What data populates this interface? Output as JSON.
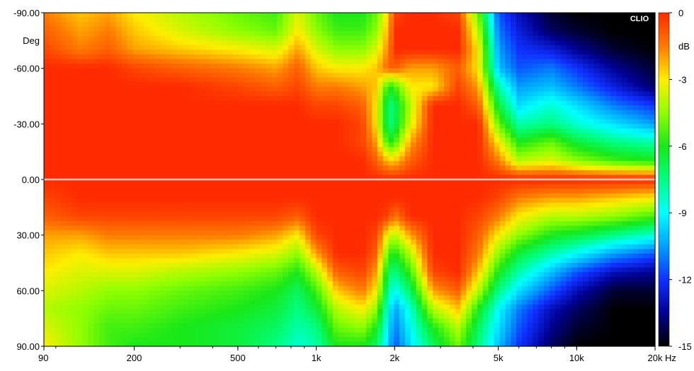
{
  "chart_data": {
    "type": "heatmap",
    "title": "",
    "watermark": "CLIO",
    "xlabel_unit": "Hz",
    "ylabel_unit": "Deg",
    "x_scale": "log",
    "xlim": [
      90,
      20000
    ],
    "ylim": [
      -90,
      90
    ],
    "x_ticks": [
      {
        "value": 90,
        "label": "90"
      },
      {
        "value": 200,
        "label": "200"
      },
      {
        "value": 500,
        "label": "500"
      },
      {
        "value": 1000,
        "label": "1k"
      },
      {
        "value": 2000,
        "label": "2k"
      },
      {
        "value": 5000,
        "label": "5k"
      },
      {
        "value": 10000,
        "label": "10k"
      },
      {
        "value": 20000,
        "label": "20k"
      }
    ],
    "y_ticks": [
      {
        "value": -90,
        "label": "-90.00"
      },
      {
        "value": -60,
        "label": "-60.00"
      },
      {
        "value": -30,
        "label": "-30.00"
      },
      {
        "value": 0,
        "label": "0.00"
      },
      {
        "value": 30,
        "label": "30.00"
      },
      {
        "value": 60,
        "label": "60.00"
      },
      {
        "value": 90,
        "label": "90.00"
      }
    ],
    "colorbar": {
      "unit": "dB",
      "range": [
        -15,
        0
      ],
      "ticks": [
        {
          "value": 0,
          "label": "0"
        },
        {
          "value": -3,
          "label": "-3"
        },
        {
          "value": -6,
          "label": "-6"
        },
        {
          "value": -9,
          "label": "-9"
        },
        {
          "value": -12,
          "label": "-12"
        },
        {
          "value": -15,
          "label": "-15"
        }
      ],
      "stops": [
        {
          "db": 0,
          "color": "#ff2a00"
        },
        {
          "db": -1.5,
          "color": "#ff7a00"
        },
        {
          "db": -3,
          "color": "#ffee00"
        },
        {
          "db": -4.5,
          "color": "#90ff00"
        },
        {
          "db": -6,
          "color": "#18e818"
        },
        {
          "db": -7.5,
          "color": "#00ff80"
        },
        {
          "db": -9,
          "color": "#00ffff"
        },
        {
          "db": -10.5,
          "color": "#00a0ff"
        },
        {
          "db": -12,
          "color": "#1030ff"
        },
        {
          "db": -13.5,
          "color": "#000090"
        },
        {
          "db": -15,
          "color": "#000000"
        }
      ]
    },
    "colors": {
      "reference_line": "#ffc8b4"
    },
    "angles": [
      -90,
      -80,
      -70,
      -60,
      -50,
      -40,
      -30,
      -20,
      -10,
      0,
      10,
      20,
      30,
      40,
      50,
      60,
      70,
      80,
      90
    ],
    "frequencies": [
      90,
      125,
      160,
      200,
      300,
      500,
      700,
      850,
      1000,
      1200,
      1500,
      1700,
      1900,
      2000,
      2300,
      2800,
      3500,
      4200,
      5000,
      6000,
      8000,
      10000,
      14000,
      20000
    ],
    "values_db": [
      [
        -1.5,
        -2.5,
        -2.0,
        -3.0,
        -4.0,
        -5.0,
        -5.5,
        -3.5,
        -5.0,
        -6.0,
        -6.0,
        -5.0,
        -2.5,
        -0.5,
        0.0,
        0.0,
        -0.5,
        -5.0,
        -11.5,
        -13.0,
        -14.5,
        -15.0,
        -15.0,
        -15.0
      ],
      [
        -1.0,
        -2.0,
        -1.5,
        -2.5,
        -3.5,
        -4.5,
        -5.0,
        -3.0,
        -4.5,
        -5.5,
        -5.5,
        -4.5,
        -2.0,
        0.0,
        0.0,
        0.0,
        0.0,
        -4.0,
        -11.0,
        -12.5,
        -14.0,
        -14.5,
        -15.0,
        -15.0
      ],
      [
        -0.5,
        -1.5,
        -1.0,
        -2.0,
        -2.5,
        -3.0,
        -3.5,
        -2.0,
        -3.5,
        -4.5,
        -4.5,
        -3.5,
        -1.5,
        0.0,
        0.0,
        0.0,
        0.0,
        -3.0,
        -10.5,
        -12.0,
        -12.5,
        -13.5,
        -14.5,
        -15.0
      ],
      [
        0.0,
        0.0,
        0.0,
        -0.5,
        -1.0,
        -1.5,
        -2.0,
        -1.0,
        -2.5,
        -3.0,
        -3.0,
        -2.5,
        -1.0,
        -1.0,
        -2.0,
        -2.0,
        -1.0,
        -3.0,
        -10.0,
        -11.5,
        -11.0,
        -12.0,
        -13.5,
        -14.5
      ],
      [
        0.0,
        0.0,
        0.0,
        0.0,
        0.0,
        -0.5,
        -1.0,
        -0.5,
        -1.5,
        -1.5,
        -2.0,
        -2.5,
        -6.0,
        -5.5,
        -3.0,
        -3.0,
        -0.5,
        -2.0,
        -8.0,
        -10.5,
        -10.0,
        -11.0,
        -12.5,
        -14.0
      ],
      [
        0.0,
        0.0,
        0.0,
        0.0,
        0.0,
        0.0,
        0.0,
        0.0,
        -0.5,
        -0.5,
        -1.0,
        -3.0,
        -7.5,
        -7.0,
        -4.0,
        0.0,
        0.0,
        -1.0,
        -6.5,
        -9.5,
        -8.5,
        -9.5,
        -11.0,
        -12.0
      ],
      [
        0.0,
        0.0,
        0.0,
        0.0,
        0.0,
        0.0,
        0.0,
        0.0,
        0.0,
        0.0,
        -0.5,
        -3.0,
        -7.5,
        -7.0,
        -3.5,
        0.0,
        0.0,
        0.0,
        -5.0,
        -8.0,
        -7.5,
        -8.5,
        -9.5,
        -10.5
      ],
      [
        0.0,
        0.0,
        0.0,
        0.0,
        0.0,
        0.0,
        0.0,
        0.0,
        0.0,
        0.0,
        -0.5,
        -2.0,
        -6.0,
        -5.5,
        -2.0,
        0.0,
        0.0,
        0.0,
        -3.0,
        -6.0,
        -5.0,
        -6.5,
        -7.5,
        -8.0
      ],
      [
        0.0,
        0.0,
        0.0,
        0.0,
        0.0,
        0.0,
        0.0,
        0.0,
        0.0,
        0.0,
        0.0,
        -1.0,
        -2.5,
        -2.5,
        -1.0,
        0.0,
        0.0,
        0.0,
        -1.5,
        -4.0,
        -3.5,
        -4.5,
        -5.5,
        -6.0
      ],
      [
        0.0,
        0.0,
        0.0,
        0.0,
        0.0,
        0.0,
        0.0,
        0.0,
        0.0,
        0.0,
        0.0,
        0.0,
        0.0,
        0.0,
        0.0,
        0.0,
        0.0,
        0.0,
        0.0,
        0.0,
        0.0,
        0.0,
        0.0,
        0.0
      ],
      [
        -0.5,
        0.0,
        0.0,
        0.0,
        0.0,
        0.0,
        0.0,
        0.0,
        0.0,
        0.0,
        0.0,
        0.0,
        0.0,
        0.0,
        0.0,
        0.0,
        0.0,
        0.0,
        -0.5,
        -1.5,
        -2.0,
        -2.0,
        -2.5,
        -3.0
      ],
      [
        -1.0,
        -0.5,
        -0.5,
        -0.5,
        -0.5,
        -0.5,
        -0.5,
        -1.0,
        0.0,
        0.0,
        0.0,
        0.0,
        -0.5,
        -1.5,
        0.0,
        0.0,
        0.0,
        -0.5,
        -1.5,
        -3.0,
        -4.0,
        -4.0,
        -4.5,
        -5.5
      ],
      [
        -2.0,
        -2.0,
        -1.5,
        -1.5,
        -1.5,
        -1.5,
        -2.0,
        -3.0,
        -0.5,
        0.0,
        0.0,
        -0.5,
        -3.5,
        -4.0,
        -2.0,
        0.0,
        0.0,
        -1.0,
        -3.0,
        -4.5,
        -6.0,
        -6.5,
        -7.5,
        -8.5
      ],
      [
        -2.5,
        -3.0,
        -2.5,
        -2.5,
        -2.5,
        -3.0,
        -3.5,
        -4.5,
        -2.0,
        0.0,
        0.0,
        -1.0,
        -5.5,
        -6.0,
        -4.0,
        0.0,
        0.0,
        -1.5,
        -4.5,
        -6.5,
        -8.0,
        -9.0,
        -10.5,
        -11.5
      ],
      [
        -3.0,
        -3.5,
        -3.5,
        -3.5,
        -4.0,
        -4.5,
        -5.0,
        -6.0,
        -4.0,
        -1.0,
        -0.5,
        -2.0,
        -7.0,
        -7.5,
        -5.5,
        -0.5,
        0.0,
        -2.5,
        -6.0,
        -8.0,
        -10.0,
        -11.5,
        -13.0,
        -13.5
      ],
      [
        -3.5,
        -4.0,
        -4.5,
        -4.5,
        -5.0,
        -5.5,
        -6.0,
        -7.0,
        -5.5,
        -2.5,
        -1.5,
        -3.0,
        -8.0,
        -9.0,
        -7.0,
        -2.0,
        -1.0,
        -4.0,
        -7.5,
        -9.5,
        -11.5,
        -13.0,
        -14.5,
        -14.5
      ],
      [
        -4.0,
        -4.5,
        -5.0,
        -5.0,
        -5.5,
        -6.0,
        -6.5,
        -7.5,
        -6.5,
        -4.0,
        -3.0,
        -4.5,
        -9.0,
        -10.5,
        -8.5,
        -4.0,
        -2.5,
        -6.0,
        -9.0,
        -11.0,
        -13.0,
        -14.0,
        -15.0,
        -15.0
      ],
      [
        -3.5,
        -4.5,
        -5.5,
        -5.5,
        -6.0,
        -6.5,
        -7.0,
        -8.0,
        -7.5,
        -5.0,
        -4.5,
        -6.0,
        -9.5,
        -11.0,
        -9.0,
        -6.0,
        -4.0,
        -7.0,
        -9.5,
        -11.5,
        -13.5,
        -14.5,
        -15.0,
        -15.0
      ],
      [
        -3.0,
        -4.5,
        -5.5,
        -6.0,
        -6.0,
        -6.5,
        -7.5,
        -8.5,
        -8.0,
        -6.0,
        -6.0,
        -7.0,
        -10.0,
        -11.5,
        -9.5,
        -7.0,
        -5.0,
        -7.5,
        -10.0,
        -12.0,
        -14.0,
        -15.0,
        -15.0,
        -15.0
      ]
    ]
  }
}
